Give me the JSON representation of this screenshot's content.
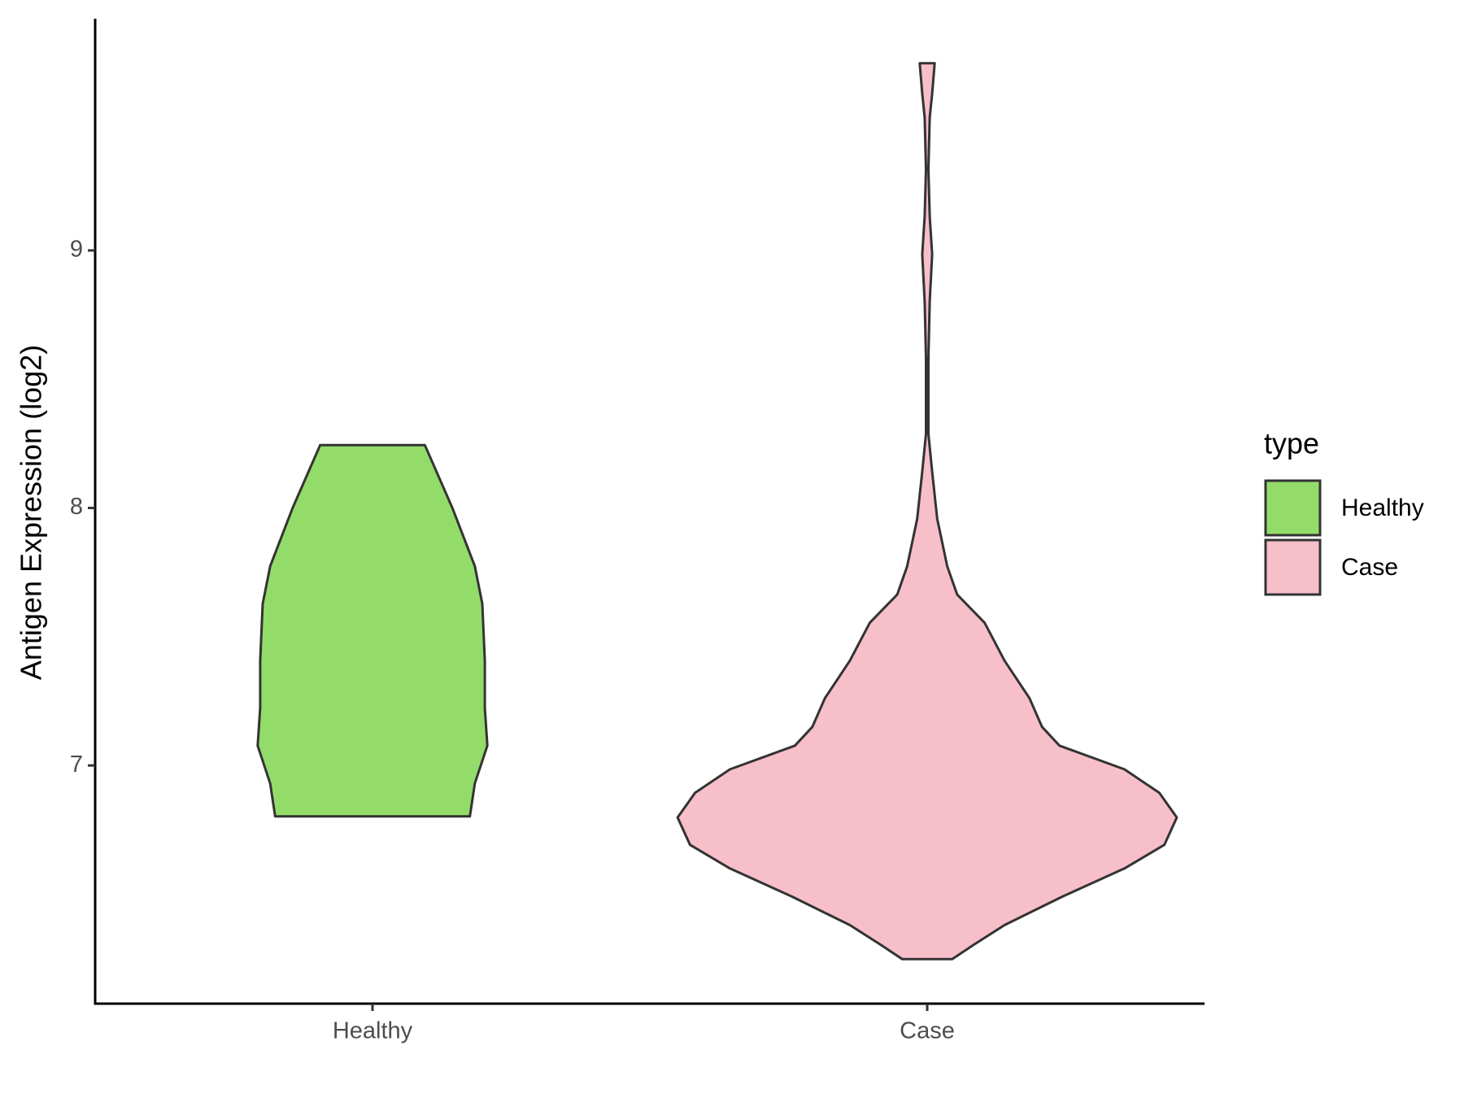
{
  "chart_data": {
    "type": "violin",
    "y_label": "Antigen Expression (log2)",
    "categories": [
      "Healthy",
      "Case"
    ],
    "legend_title": "type",
    "legend_position": "right",
    "ylim": [
      6.075,
      9.9
    ],
    "yticks": [
      7,
      8,
      9
    ],
    "series": [
      {
        "name": "Healthy",
        "color": "#93dc6a",
        "y": [
          8.244,
          8.0,
          7.774,
          7.628,
          7.407,
          7.224,
          7.077,
          6.93,
          6.802
        ],
        "density": [
          0.21,
          0.32,
          0.41,
          0.44,
          0.45,
          0.45,
          0.46,
          0.41,
          0.39
        ]
      },
      {
        "name": "Case",
        "color": "#f7bfca",
        "y": [
          9.727,
          9.609,
          9.517,
          9.316,
          9.132,
          8.985,
          8.802,
          8.582,
          8.288,
          8.141,
          7.958,
          7.774,
          7.664,
          7.554,
          7.407,
          7.261,
          7.15,
          7.077,
          6.985,
          6.894,
          6.798,
          6.692,
          6.6,
          6.49,
          6.38,
          6.306,
          6.248
        ],
        "density": [
          0.03,
          0.02,
          0.01,
          0.005,
          0.01,
          0.02,
          0.01,
          0.005,
          0.005,
          0.02,
          0.04,
          0.08,
          0.12,
          0.23,
          0.31,
          0.41,
          0.46,
          0.53,
          0.79,
          0.93,
          1,
          0.95,
          0.79,
          0.54,
          0.31,
          0.19,
          0.1
        ]
      }
    ]
  }
}
